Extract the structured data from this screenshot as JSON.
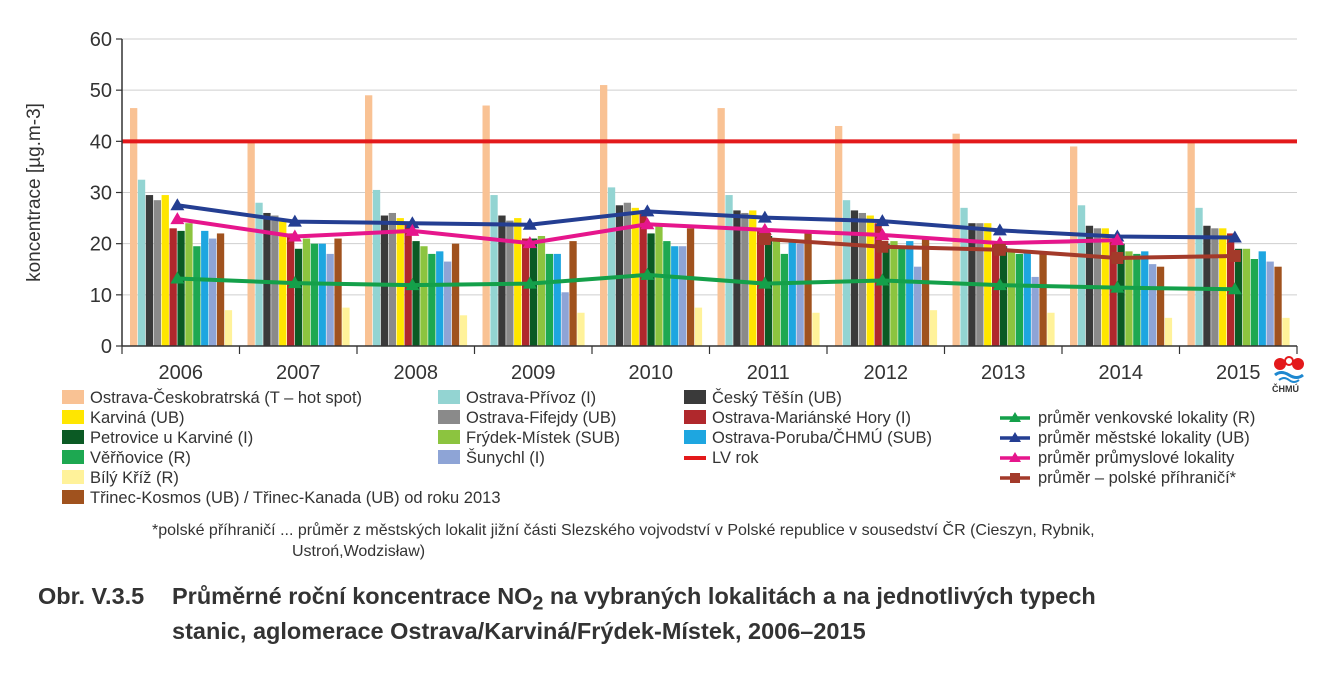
{
  "chart_data": {
    "type": "bar",
    "ylabel": "koncentrace [µg.m-3]",
    "ylim": [
      0,
      60
    ],
    "yticks": [
      0,
      10,
      20,
      30,
      40,
      50,
      60
    ],
    "categories": [
      "2006",
      "2007",
      "2008",
      "2009",
      "2010",
      "2011",
      "2012",
      "2013",
      "2014",
      "2015"
    ],
    "bar_series": [
      {
        "name": "Ostrava-Českobratrská (T – hot spot)",
        "color": "#f9c294",
        "values": [
          46.5,
          40,
          49,
          47,
          51,
          46.5,
          43,
          41.5,
          39,
          40
        ]
      },
      {
        "name": "Ostrava-Přívoz (I)",
        "color": "#93d4d2",
        "values": [
          32.5,
          28,
          30.5,
          29.5,
          31,
          29.5,
          28.5,
          27,
          27.5,
          27
        ]
      },
      {
        "name": "Český Těšín (UB)",
        "color": "#3a3a3a",
        "values": [
          29.5,
          26,
          25.5,
          25.5,
          27.5,
          26.5,
          26.5,
          24,
          23.5,
          23.5
        ]
      },
      {
        "name": "Ostrava-Fifejdy (UB)",
        "color": "#8a8a8a",
        "values": [
          28.5,
          25.5,
          26,
          24.5,
          28,
          26,
          26,
          24,
          23,
          23
        ]
      },
      {
        "name": "Karviná (UB)",
        "color": "#ffe600",
        "values": [
          29.5,
          24.5,
          25,
          25,
          27,
          26.5,
          25.5,
          24,
          23,
          23
        ]
      },
      {
        "name": "Ostrava-Mariánské Hory (I)",
        "color": "#b0282c",
        "values": [
          23,
          22,
          24,
          21,
          26,
          23,
          24,
          20,
          21,
          22
        ]
      },
      {
        "name": "Petrovice u Karviné (I)",
        "color": "#0b5a24",
        "values": [
          22.5,
          19,
          20.5,
          21,
          22,
          21.5,
          20,
          19.5,
          20,
          19
        ]
      },
      {
        "name": "Frýdek-Místek (SUB)",
        "color": "#8cc43f",
        "values": [
          24,
          21,
          19.5,
          21.5,
          24,
          21,
          20.5,
          18.5,
          18.5,
          19
        ]
      },
      {
        "name": "Věřňovice (R)",
        "color": "#1da851",
        "values": [
          19.5,
          20,
          18,
          18,
          20.5,
          18,
          19,
          18,
          18,
          17
        ]
      },
      {
        "name": "Ostrava-Poruba/ČHMÚ (SUB)",
        "color": "#1ea6e0",
        "values": [
          22.5,
          20,
          18.5,
          18,
          19.5,
          20.5,
          20.5,
          18.5,
          18.5,
          18.5
        ]
      },
      {
        "name": "Šunychl (I)",
        "color": "#8ea4d6",
        "values": [
          21,
          18,
          16.5,
          10.5,
          19.5,
          20,
          15.5,
          13.5,
          16,
          16.5
        ]
      },
      {
        "name": "Třinec-Kosmos (UB) / Třinec-Kanada (UB) od roku 2013",
        "color": "#a0521e",
        "values": [
          22,
          21,
          20,
          20.5,
          23,
          22,
          21,
          18.5,
          15.5,
          15.5
        ]
      },
      {
        "name": "Bílý Kříž (R)",
        "color": "#fff29a",
        "values": [
          7,
          7.5,
          6,
          6.5,
          7.5,
          6.5,
          7,
          6.5,
          5.5,
          5.5
        ]
      }
    ],
    "line_series": [
      {
        "name": "LV rok",
        "color": "#e3191b",
        "values": [
          40,
          40,
          40,
          40,
          40,
          40,
          40,
          40,
          40,
          40
        ],
        "marker": "none"
      },
      {
        "name": "průměr venkovské lokality (R)",
        "color": "#14a04a",
        "values": [
          13.2,
          12.3,
          11.9,
          12.2,
          13.9,
          12.2,
          12.8,
          11.9,
          11.4,
          11.1
        ],
        "marker": "triangle"
      },
      {
        "name": "průměr městské lokality (UB)",
        "color": "#243e92",
        "values": [
          27.5,
          24.3,
          24,
          23.7,
          26.3,
          25.1,
          24.4,
          22.6,
          21.4,
          21.2
        ],
        "marker": "triangle"
      },
      {
        "name": "průměr průmyslové lokality",
        "color": "#e6168c",
        "values": [
          24.8,
          21.4,
          22.5,
          20.1,
          23.8,
          22.7,
          21.7,
          20.1,
          20.7,
          null
        ],
        "marker": "triangle"
      },
      {
        "name": "průměr – polské příhraničí*",
        "color": "#a33a2a",
        "values": [
          null,
          null,
          null,
          null,
          null,
          20.9,
          19.4,
          18.8,
          17.2,
          17.6
        ],
        "marker": "square"
      }
    ],
    "legend_order": [
      [
        0,
        "b"
      ],
      [
        1,
        "b"
      ],
      [
        2,
        "b"
      ],
      [
        4,
        "b"
      ],
      [
        3,
        "b"
      ],
      [
        5,
        "b"
      ],
      [
        6,
        "b"
      ],
      [
        7,
        "b"
      ],
      [
        9,
        "b"
      ],
      [
        8,
        "b"
      ],
      [
        10,
        "b"
      ],
      [
        0,
        "l"
      ],
      [
        12,
        "b"
      ],
      [
        11,
        "b"
      ],
      [
        1,
        "l"
      ],
      [
        2,
        "l"
      ],
      [
        3,
        "l"
      ],
      [
        4,
        "l"
      ]
    ]
  },
  "footnote": "*polské příhraničí ... průměr z městských lokalit jižní části Slezského vojvodství v Polské republice v sousedství ČR (Cieszyn, Rybnik,",
  "footnote_cont": "Ustroń,Wodzisław)",
  "caption": {
    "number": "Obr. V.3.5",
    "text_before_sub": "Průměrné roční koncentrace NO",
    "sub": "2",
    "text_after_sub": " na vybraných lokalitách a na jednotlivých typech",
    "line2": "stanic, aglomerace Ostrava/Karviná/Frýdek-Místek, 2006–2015"
  },
  "logo_text": "ČHMÚ"
}
